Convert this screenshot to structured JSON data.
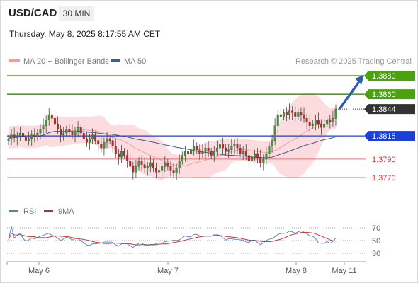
{
  "header": {
    "symbol": "USD/CAD",
    "timeframe": "30 MIN",
    "datetime": "Thursday, May 8, 2025 8:17:55 AM CET"
  },
  "watermark": "Research © 2025 Trading Central",
  "colors": {
    "green": "#4aa30e",
    "blue": "#1c3fd6",
    "red": "#e8747c",
    "dark": "#333333",
    "bull": "#3d9a2e",
    "bear": "#c42525",
    "band": "#fbd0d3",
    "ma50": "#3a5d98"
  },
  "chart_data": [
    {
      "type": "candlestick",
      "legend": [
        {
          "name": "MA 20 + Bollinger Bands",
          "color": "#f59a9a"
        },
        {
          "name": "MA 50",
          "color": "#3a5d98"
        }
      ],
      "ylim": [
        1.3755,
        1.3905
      ],
      "x_ticks": [
        "May 6",
        "May 7",
        "May 8",
        "May 11"
      ],
      "price_levels": [
        {
          "label": "1.3880",
          "value": 1.388,
          "kind": "resistance"
        },
        {
          "label": "1.3860",
          "value": 1.386,
          "kind": "resistance"
        },
        {
          "label": "1.3844",
          "value": 1.3844,
          "kind": "current"
        },
        {
          "label": "1.3815",
          "value": 1.3815,
          "kind": "pivot"
        },
        {
          "label": "1.3790",
          "value": 1.379,
          "kind": "support"
        },
        {
          "label": "1.3770",
          "value": 1.377,
          "kind": "support"
        }
      ],
      "closes": [
        1.3812,
        1.3816,
        1.3813,
        1.3815,
        1.3818,
        1.3814,
        1.381,
        1.3812,
        1.3816,
        1.3814,
        1.3818,
        1.3822,
        1.3826,
        1.3832,
        1.3838,
        1.3834,
        1.3828,
        1.3822,
        1.3816,
        1.3818,
        1.3822,
        1.382,
        1.3816,
        1.382,
        1.3824,
        1.3818,
        1.3812,
        1.3808,
        1.3812,
        1.3816,
        1.381,
        1.3806,
        1.3802,
        1.3808,
        1.3812,
        1.381,
        1.3804,
        1.3796,
        1.3792,
        1.3798,
        1.3794,
        1.3788,
        1.3782,
        1.3776,
        1.3782,
        1.3788,
        1.3784,
        1.378,
        1.3782,
        1.3786,
        1.378,
        1.3776,
        1.3778,
        1.3782,
        1.3786,
        1.3782,
        1.3778,
        1.3775,
        1.378,
        1.3788,
        1.3794,
        1.3798,
        1.3796,
        1.38,
        1.3804,
        1.38,
        1.3796,
        1.3798,
        1.3802,
        1.3798,
        1.3794,
        1.3798,
        1.3802,
        1.3806,
        1.3802,
        1.3798,
        1.38,
        1.3804,
        1.3806,
        1.3802,
        1.3796,
        1.3798,
        1.3794,
        1.3788,
        1.3792,
        1.3796,
        1.3792,
        1.3786,
        1.379,
        1.3796,
        1.3804,
        1.381,
        1.3826,
        1.3838,
        1.3836,
        1.384,
        1.3838,
        1.3842,
        1.384,
        1.3836,
        1.384,
        1.3838,
        1.3834,
        1.383,
        1.3826,
        1.3828,
        1.3832,
        1.3828,
        1.3824,
        1.3828,
        1.3832,
        1.383,
        1.3834,
        1.3844
      ],
      "rsi": {
        "ylim": [
          20,
          80
        ],
        "levels": [
          70,
          50,
          30
        ],
        "legend": [
          {
            "name": "RSI",
            "color": "#4a7fd4"
          },
          {
            "name": "9MA",
            "color": "#d82020"
          }
        ]
      }
    }
  ]
}
